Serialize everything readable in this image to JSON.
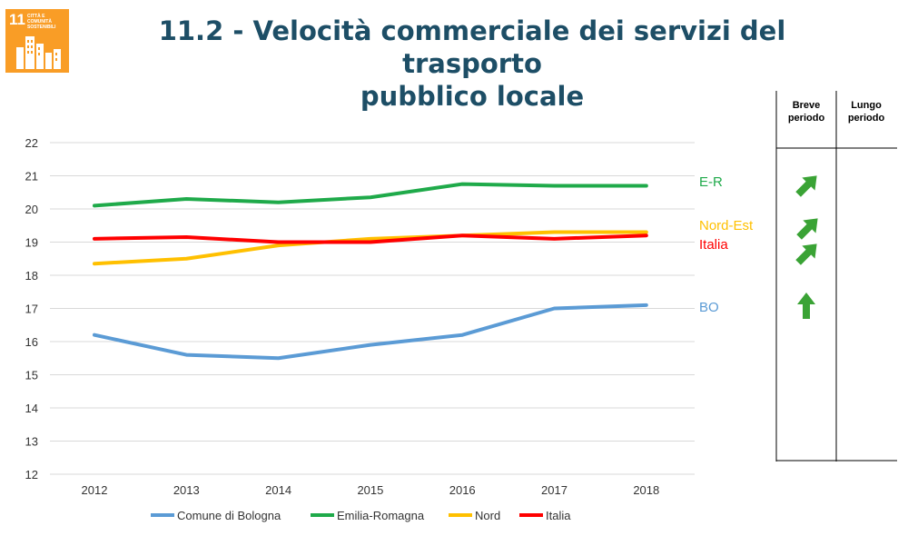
{
  "badge": {
    "number": "11",
    "text": "CITTÀ E COMUNITÀ SOSTENIBILI",
    "color": "#f99d26"
  },
  "title": {
    "line1": "11.2 - Velocità commerciale dei servizi del trasporto",
    "line2": "pubblico locale"
  },
  "chart_data": {
    "type": "line",
    "title": "11.2 - Velocità commerciale dei servizi del trasporto pubblico locale",
    "xlabel": "",
    "ylabel": "",
    "x": [
      2012,
      2013,
      2014,
      2015,
      2016,
      2017,
      2018
    ],
    "ylim": [
      12,
      22
    ],
    "yticks": [
      12,
      13,
      14,
      15,
      16,
      17,
      18,
      19,
      20,
      21,
      22
    ],
    "grid": true,
    "legend_position": "bottom",
    "series": [
      {
        "name": "Comune di Bologna",
        "end_label": "BO",
        "color": "#5b9bd5",
        "values": [
          16.2,
          15.6,
          15.5,
          15.9,
          16.2,
          17.0,
          17.1
        ]
      },
      {
        "name": "Emilia-Romagna",
        "end_label": "E-R",
        "color": "#1faa4a",
        "values": [
          20.1,
          20.3,
          20.2,
          20.35,
          20.75,
          20.7,
          20.7
        ]
      },
      {
        "name": "Nord",
        "end_label": "Nord-Est",
        "color": "#ffc000",
        "values": [
          18.35,
          18.5,
          18.9,
          19.1,
          19.2,
          19.3,
          19.3
        ]
      },
      {
        "name": "Italia",
        "end_label": "Italia",
        "color": "#ff0000",
        "values": [
          19.1,
          19.15,
          19.0,
          19.0,
          19.2,
          19.1,
          19.2
        ]
      }
    ]
  },
  "trend_panel": {
    "short_header": [
      "Breve",
      "periodo"
    ],
    "long_header": [
      "Lungo",
      "periodo"
    ],
    "arrow_color": "#3aa335",
    "arrows": [
      {
        "series": "E-R",
        "direction": "up-right"
      },
      {
        "series": "Nord-Est",
        "direction": "up-right"
      },
      {
        "series": "Italia",
        "direction": "up-right"
      },
      {
        "series": "BO",
        "direction": "up"
      }
    ]
  }
}
